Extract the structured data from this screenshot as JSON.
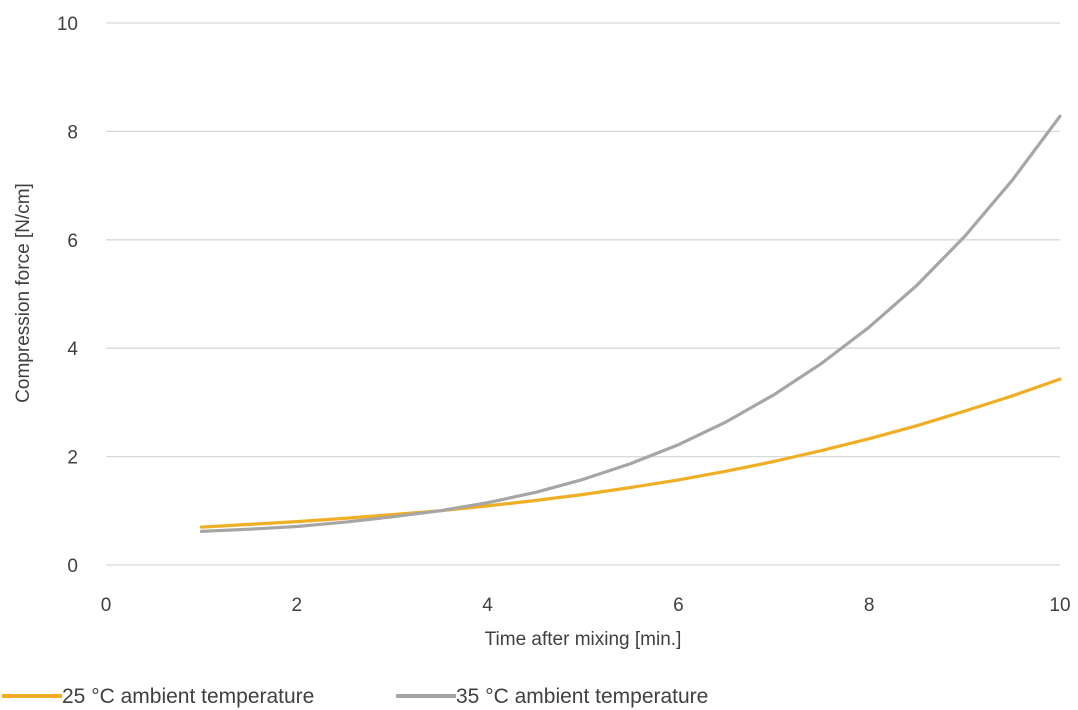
{
  "chart_data": {
    "type": "line",
    "title": "",
    "xlabel": "Time after mixing [min.]",
    "ylabel": "Compression force [N/cm]",
    "xlim": [
      0,
      10
    ],
    "ylim": [
      0,
      10
    ],
    "xticks": [
      "0",
      "2",
      "4",
      "6",
      "8",
      "10"
    ],
    "yticks": [
      "0",
      "2",
      "4",
      "6",
      "8",
      "10"
    ],
    "grid": "horizontal",
    "legend_position": "bottom-left",
    "series": [
      {
        "name": "25 °C ambient temperature",
        "color": "#F0AE25",
        "x": [
          1,
          1.5,
          2,
          2.5,
          3,
          3.5,
          4,
          4.5,
          5,
          5.5,
          6,
          6.5,
          7,
          7.5,
          8,
          8.5,
          9,
          9.5,
          10
        ],
        "y": [
          0.7,
          0.75,
          0.8,
          0.86,
          0.93,
          1.0,
          1.09,
          1.19,
          1.3,
          1.43,
          1.57,
          1.73,
          1.91,
          2.11,
          2.33,
          2.57,
          2.84,
          3.12,
          3.43
        ]
      },
      {
        "name": "35 °C ambient temperature",
        "color": "#A6A6A6",
        "x": [
          1,
          1.5,
          2,
          2.5,
          3,
          3.5,
          4,
          4.5,
          5,
          5.5,
          6,
          6.5,
          7,
          7.5,
          8,
          8.5,
          9,
          9.5,
          10
        ],
        "y": [
          0.62,
          0.66,
          0.71,
          0.79,
          0.89,
          1.0,
          1.15,
          1.34,
          1.58,
          1.87,
          2.22,
          2.64,
          3.14,
          3.72,
          4.39,
          5.16,
          6.06,
          7.1,
          8.28
        ]
      }
    ]
  }
}
